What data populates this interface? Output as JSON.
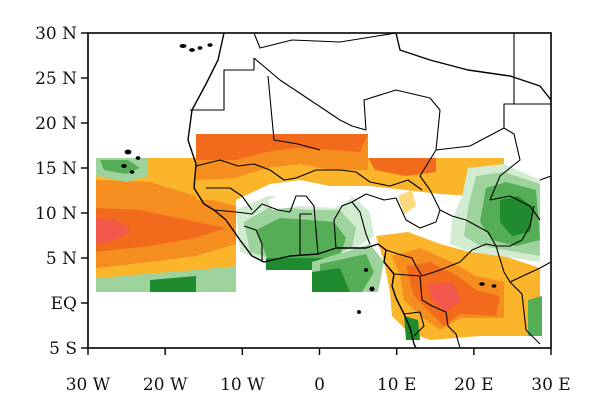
{
  "map": {
    "lon_range": [
      -30,
      30
    ],
    "lat_range": [
      -5,
      30
    ],
    "x_ticks": [
      {
        "lon": -30,
        "label": "30 W"
      },
      {
        "lon": -20,
        "label": "20 W"
      },
      {
        "lon": -10,
        "label": "10 W"
      },
      {
        "lon": 0,
        "label": "0"
      },
      {
        "lon": 10,
        "label": "10 E"
      },
      {
        "lon": 20,
        "label": "20 E"
      },
      {
        "lon": 30,
        "label": "30 E"
      }
    ],
    "y_ticks": [
      {
        "lat": 30,
        "label": "30 N"
      },
      {
        "lat": 25,
        "label": "25 N"
      },
      {
        "lat": 20,
        "label": "20 N"
      },
      {
        "lat": 15,
        "label": "15 N"
      },
      {
        "lat": 10,
        "label": "10 N"
      },
      {
        "lat": 5,
        "label": "5 N"
      },
      {
        "lat": 0,
        "label": "EQ"
      },
      {
        "lat": -5,
        "label": "5 S"
      }
    ],
    "colors": {
      "red": "#f2594a",
      "dark_orange": "#f26b1d",
      "orange": "#f68e1f",
      "light_orange": "#fab52a",
      "yellow": "#fcd97a",
      "pale_green": "#d2ecd2",
      "light_green": "#9ed39e",
      "green": "#55ad55",
      "dark_green": "#1f8a2e"
    }
  }
}
